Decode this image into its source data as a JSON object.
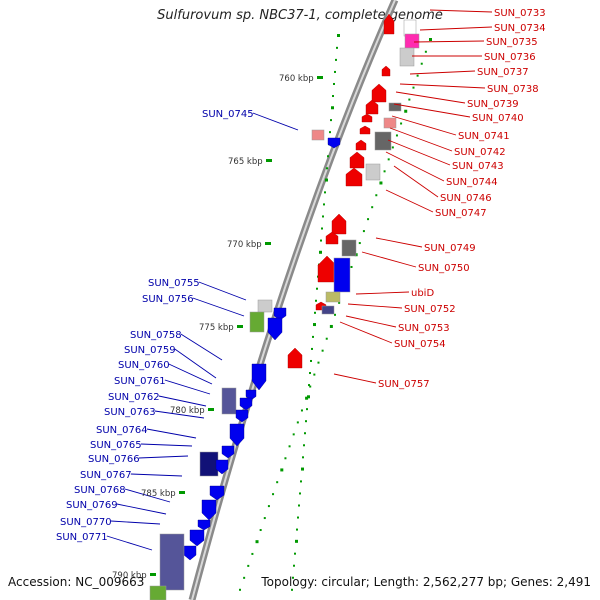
{
  "title": "Sulfurovum sp. NBC37-1, complete genome",
  "footer": {
    "accession": "Accession: NC_009663",
    "summary": "Topology: circular; Length: 2,562,277 bp; Genes: 2,491"
  },
  "colors": {
    "forward_gene": "#0000ee",
    "reverse_gene": "#ee0000",
    "label_forward": "#0000aa",
    "label_reverse": "#cc0000",
    "backbone": "#888888",
    "tick": "#009900"
  },
  "scale_labels": [
    "760 kbp",
    "765 kbp",
    "770 kbp",
    "775 kbp",
    "780 kbp",
    "785 kbp",
    "790 kbp"
  ],
  "reverse_strand_genes": [
    "SUN_0733",
    "SUN_0734",
    "SUN_0735",
    "SUN_0736",
    "SUN_0737",
    "SUN_0738",
    "SUN_0739",
    "SUN_0740",
    "SUN_0741",
    "SUN_0742",
    "SUN_0743",
    "SUN_0744",
    "SUN_0746",
    "SUN_0747",
    "SUN_0749",
    "SUN_0750",
    "ubiD",
    "SUN_0752",
    "SUN_0753",
    "SUN_0754",
    "SUN_0757"
  ],
  "forward_strand_genes": [
    "SUN_0745",
    "SUN_0755",
    "SUN_0756",
    "SUN_0758",
    "SUN_0759",
    "SUN_0760",
    "SUN_0761",
    "SUN_0762",
    "SUN_0763",
    "SUN_0764",
    "SUN_0765",
    "SUN_0766",
    "SUN_0767",
    "SUN_0768",
    "SUN_0769",
    "SUN_0770",
    "SUN_0771"
  ]
}
